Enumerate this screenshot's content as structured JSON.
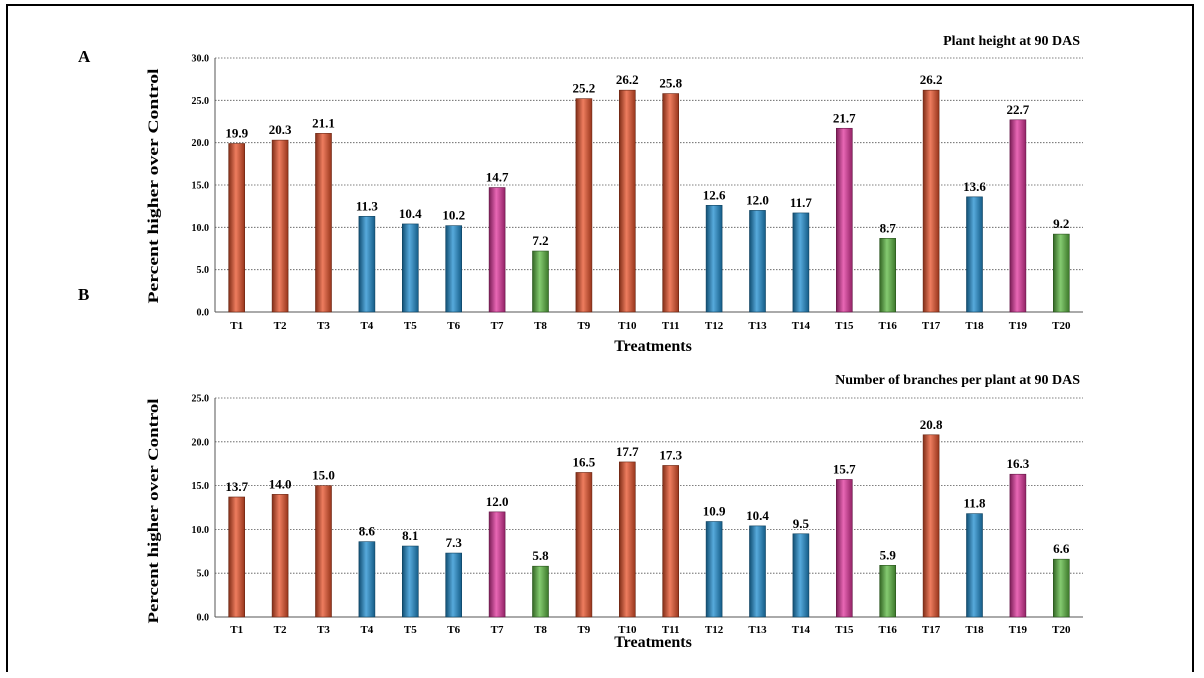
{
  "colors": {
    "orange": "#e8522a",
    "blue": "#1f8ed0",
    "magenta": "#e0349c",
    "green": "#5cb941"
  },
  "chart_data": [
    {
      "panel": "A",
      "type": "bar",
      "title": "Plant height at 90 DAS",
      "xlabel": "Treatments",
      "ylabel": "Percent higher over Control",
      "ylim": [
        0,
        30
      ],
      "yticks": [
        "0.0",
        "5.0",
        "10.0",
        "15.0",
        "20.0",
        "25.0",
        "30.0"
      ],
      "grid": true,
      "categories": [
        "T1",
        "T2",
        "T3",
        "T4",
        "T5",
        "T6",
        "T7",
        "T8",
        "T9",
        "T10",
        "T11",
        "T12",
        "T13",
        "T14",
        "T15",
        "T16",
        "T17",
        "T18",
        "T19",
        "T20"
      ],
      "values": [
        19.9,
        20.3,
        21.1,
        11.3,
        10.4,
        10.2,
        14.7,
        7.2,
        25.2,
        26.2,
        25.8,
        12.6,
        12.0,
        11.7,
        21.7,
        8.7,
        26.2,
        13.6,
        22.7,
        9.2
      ],
      "data_labels": [
        "19.9",
        "20.3",
        "21.1",
        "11.3",
        "10.4",
        "10.2",
        "14.7",
        "7.2",
        "25.2",
        "26.2",
        "25.8",
        "12.6",
        "12.0",
        "11.7",
        "21.7",
        "8.7",
        "26.2",
        "13.6",
        "22.7",
        "9.2"
      ],
      "bar_colors": [
        "orange",
        "orange",
        "orange",
        "blue",
        "blue",
        "blue",
        "magenta",
        "green",
        "orange",
        "orange",
        "orange",
        "blue",
        "blue",
        "blue",
        "magenta",
        "green",
        "orange",
        "blue",
        "magenta",
        "green"
      ]
    },
    {
      "panel": "B",
      "type": "bar",
      "title": "Number of branches per plant at 90 DAS",
      "xlabel": "Treatments",
      "ylabel": "Percent higher over Control",
      "ylim": [
        0,
        25
      ],
      "yticks": [
        "0.0",
        "5.0",
        "10.0",
        "15.0",
        "20.0",
        "25.0"
      ],
      "grid": true,
      "categories": [
        "T1",
        "T2",
        "T3",
        "T4",
        "T5",
        "T6",
        "T7",
        "T8",
        "T9",
        "T10",
        "T11",
        "T12",
        "T13",
        "T14",
        "T15",
        "T16",
        "T17",
        "T18",
        "T19",
        "T20"
      ],
      "values": [
        13.7,
        14.0,
        15.0,
        8.6,
        8.1,
        7.3,
        12.0,
        5.8,
        16.5,
        17.7,
        17.3,
        10.9,
        10.4,
        9.5,
        15.7,
        5.9,
        20.8,
        11.8,
        16.3,
        6.6
      ],
      "data_labels": [
        "13.7",
        "14.0",
        "15.0",
        "8.6",
        "8.1",
        "7.3",
        "12.0",
        "5.8",
        "16.5",
        "17.7",
        "17.3",
        "10.9",
        "10.4",
        "9.5",
        "15.7",
        "5.9",
        "20.8",
        "11.8",
        "16.3",
        "6.6"
      ],
      "bar_colors": [
        "orange",
        "orange",
        "orange",
        "blue",
        "blue",
        "blue",
        "magenta",
        "green",
        "orange",
        "orange",
        "orange",
        "blue",
        "blue",
        "blue",
        "magenta",
        "green",
        "orange",
        "blue",
        "magenta",
        "green"
      ]
    }
  ]
}
